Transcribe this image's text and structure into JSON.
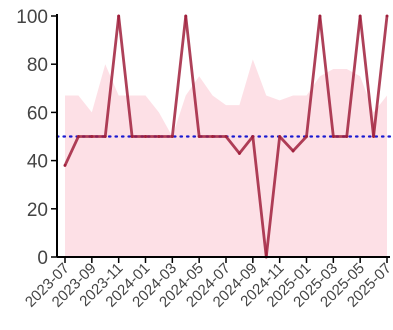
{
  "chart_data": {
    "type": "line",
    "title": "",
    "xlabel": "",
    "ylabel": "",
    "ylim": [
      0,
      100
    ],
    "y_ticks": [
      "0",
      "20",
      "40",
      "60",
      "80",
      "100"
    ],
    "x_ticks": [
      "2023-07",
      "2023-09",
      "2023-11",
      "2024-01",
      "2024-03",
      "2024-05",
      "2024-07",
      "2024-09",
      "2024-11",
      "2025-01",
      "2025-03",
      "2025-05",
      "2025-07"
    ],
    "x": [
      "2023-07",
      "2023-08",
      "2023-09",
      "2023-10",
      "2023-11",
      "2023-12",
      "2024-01",
      "2024-02",
      "2024-03",
      "2024-04",
      "2024-05",
      "2024-06",
      "2024-07",
      "2024-08",
      "2024-09",
      "2024-10",
      "2024-11",
      "2024-12",
      "2025-01",
      "2025-02",
      "2025-03",
      "2025-04",
      "2025-05",
      "2025-06",
      "2025-07"
    ],
    "series": [
      {
        "kind": "line",
        "color": "#a0203c",
        "values": [
          38,
          50,
          50,
          50,
          100,
          50,
          50,
          50,
          50,
          100,
          50,
          50,
          50,
          43,
          50,
          0,
          50,
          44,
          50,
          100,
          50,
          50,
          100,
          50,
          100
        ]
      },
      {
        "kind": "area",
        "color": "#fde0e6",
        "values": [
          67,
          67,
          60,
          80,
          67,
          67,
          67,
          60,
          50,
          67,
          75,
          67,
          63,
          63,
          82,
          67,
          65,
          67,
          67,
          75,
          78,
          78,
          75,
          60,
          67
        ]
      }
    ],
    "reference_line": {
      "y": 50,
      "style": "dotted",
      "color": "#1a1ad0"
    },
    "grid": false,
    "legend": "none"
  }
}
